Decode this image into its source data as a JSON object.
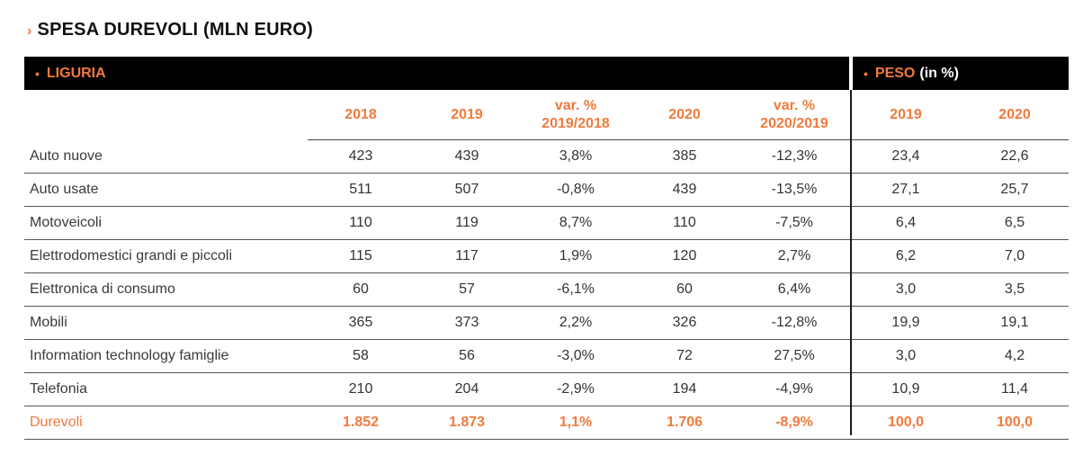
{
  "title": "SPESA DUREVOLI (MLN EURO)",
  "title_marker": "›",
  "accent_color": "#f07a3c",
  "header": {
    "left_bullet": "•",
    "left_label": "LIGURIA",
    "right_bullet": "•",
    "right_label": "PESO",
    "right_sub": "(in %)"
  },
  "columns": [
    "2018",
    "2019",
    "var. % 2019/2018",
    "2020",
    "var. % 2020/2019",
    "2019",
    "2020"
  ],
  "columns_split": [
    {
      "l1": "2018",
      "l2": ""
    },
    {
      "l1": "2019",
      "l2": ""
    },
    {
      "l1": "var. %",
      "l2": "2019/2018"
    },
    {
      "l1": "2020",
      "l2": ""
    },
    {
      "l1": "var. %",
      "l2": "2020/2019"
    },
    {
      "l1": "2019",
      "l2": ""
    },
    {
      "l1": "2020",
      "l2": ""
    }
  ],
  "rows": [
    {
      "label": "Auto nuove",
      "values": [
        "423",
        "439",
        "3,8%",
        "385",
        "-12,3%",
        "23,4",
        "22,6"
      ]
    },
    {
      "label": "Auto usate",
      "values": [
        "511",
        "507",
        "-0,8%",
        "439",
        "-13,5%",
        "27,1",
        "25,7"
      ]
    },
    {
      "label": "Motoveicoli",
      "values": [
        "110",
        "119",
        "8,7%",
        "110",
        "-7,5%",
        "6,4",
        "6,5"
      ]
    },
    {
      "label": "Elettrodomestici grandi e piccoli",
      "values": [
        "115",
        "117",
        "1,9%",
        "120",
        "2,7%",
        "6,2",
        "7,0"
      ]
    },
    {
      "label": "Elettronica di consumo",
      "values": [
        "60",
        "57",
        "-6,1%",
        "60",
        "6,4%",
        "3,0",
        "3,5"
      ]
    },
    {
      "label": "Mobili",
      "values": [
        "365",
        "373",
        "2,2%",
        "326",
        "-12,8%",
        "19,9",
        "19,1"
      ]
    },
    {
      "label": "Information technology famiglie",
      "values": [
        "58",
        "56",
        "-3,0%",
        "72",
        "27,5%",
        "3,0",
        "4,2"
      ]
    },
    {
      "label": "Telefonia",
      "values": [
        "210",
        "204",
        "-2,9%",
        "194",
        "-4,9%",
        "10,9",
        "11,4"
      ]
    }
  ],
  "total": {
    "label": "Durevoli",
    "values": [
      "1.852",
      "1.873",
      "1,1%",
      "1.706",
      "-8,9%",
      "100,0",
      "100,0"
    ]
  }
}
